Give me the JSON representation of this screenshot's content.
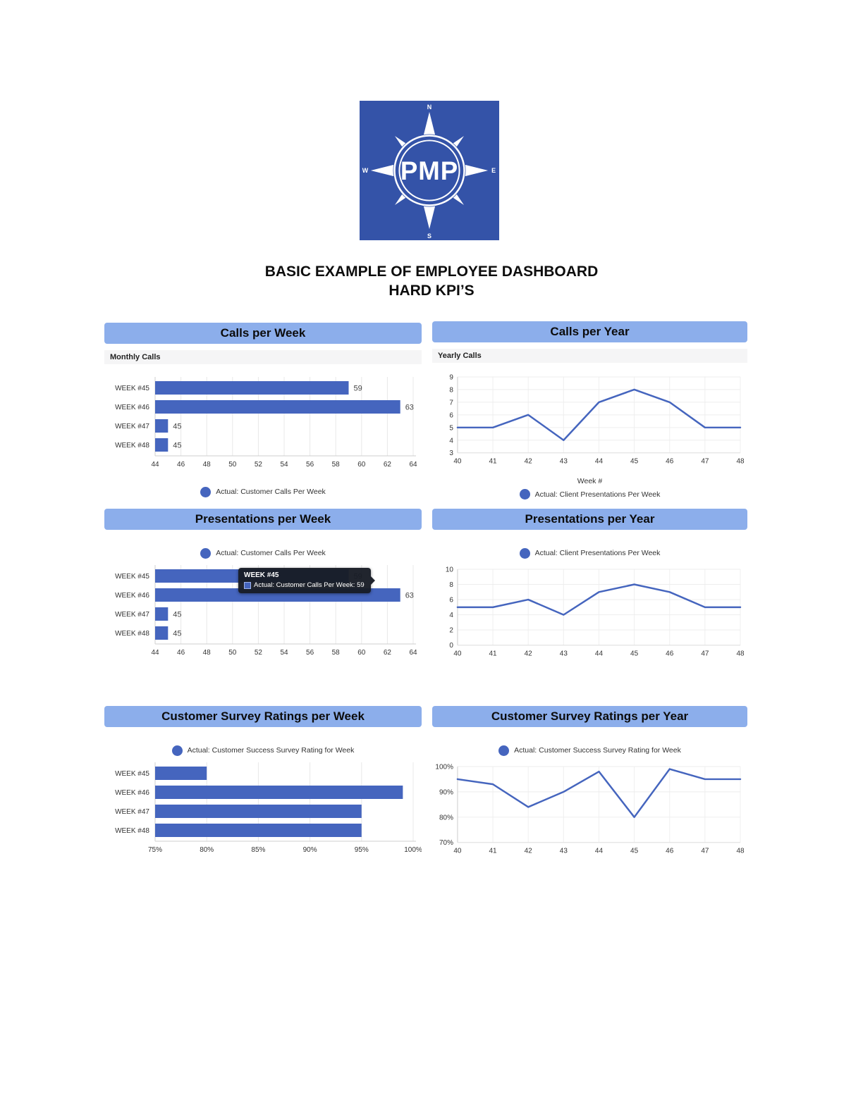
{
  "page": {
    "title_line1": "BASIC EXAMPLE OF EMPLOYEE DASHBOARD",
    "title_line2": "HARD KPI’S",
    "logo": {
      "text": "PMP",
      "n": "N",
      "e": "E",
      "s": "S",
      "w": "W"
    }
  },
  "colors": {
    "banner": "#8CAEEB",
    "series": "#4565BE",
    "logo_blue": "#3453A8",
    "tooltip_bg": "#181C25"
  },
  "chart_data": [
    {
      "id": "calls-per-week",
      "type": "bar",
      "title": "Calls per Week",
      "subtitle": "Monthly Calls",
      "legend": "Actual: Customer Calls Per Week",
      "legend_position": "bottom",
      "categories": [
        "WEEK #45",
        "WEEK #46",
        "WEEK #47",
        "WEEK #48"
      ],
      "values": [
        59,
        63,
        45,
        45
      ],
      "value_labels": true,
      "xlim": [
        44,
        64
      ],
      "xticks": [
        44,
        46,
        48,
        50,
        52,
        54,
        56,
        58,
        60,
        62,
        64
      ],
      "tick_suffix": ""
    },
    {
      "id": "calls-per-year",
      "type": "line",
      "title": "Calls per Year",
      "subtitle": "Yearly Calls",
      "legend": "Actual: Client Presentations Per Week",
      "legend_position": "bottom",
      "xlabel": "Week #",
      "x": [
        40,
        41,
        42,
        43,
        44,
        45,
        46,
        47,
        48
      ],
      "values": [
        5,
        5,
        6,
        4,
        7,
        8,
        7,
        5,
        5
      ],
      "ylim": [
        3,
        9
      ],
      "yticks": [
        3,
        4,
        5,
        6,
        7,
        8,
        9
      ],
      "tick_suffix": ""
    },
    {
      "id": "presentations-per-week",
      "type": "bar",
      "title": "Presentations per Week",
      "legend": "Actual: Customer Calls Per Week",
      "legend_position": "top",
      "categories": [
        "WEEK #45",
        "WEEK #46",
        "WEEK #47",
        "WEEK #48"
      ],
      "values": [
        59,
        63,
        45,
        45
      ],
      "value_labels": true,
      "xlim": [
        44,
        64
      ],
      "xticks": [
        44,
        46,
        48,
        50,
        52,
        54,
        56,
        58,
        60,
        62,
        64
      ],
      "tick_suffix": "",
      "tooltip": {
        "title": "WEEK #45",
        "text": "Actual: Customer Calls Per Week: 59"
      }
    },
    {
      "id": "presentations-per-year",
      "type": "line",
      "title": "Presentations per Year",
      "legend": "Actual: Client Presentations Per Week",
      "legend_position": "top",
      "x": [
        40,
        41,
        42,
        43,
        44,
        45,
        46,
        47,
        48
      ],
      "values": [
        5,
        5,
        6,
        4,
        7,
        8,
        7,
        5,
        5
      ],
      "ylim": [
        0,
        10
      ],
      "yticks": [
        0,
        2,
        4,
        6,
        8,
        10
      ],
      "tick_suffix": ""
    },
    {
      "id": "customer-survey-ratings-per-week",
      "type": "bar",
      "title": "Customer Survey Ratings per Week",
      "legend": "Actual: Customer Success Survey Rating for Week",
      "legend_position": "top",
      "categories": [
        "WEEK #45",
        "WEEK #46",
        "WEEK #47",
        "WEEK #48"
      ],
      "values": [
        80,
        99,
        95,
        95
      ],
      "value_labels": false,
      "xlim": [
        75,
        100
      ],
      "xticks": [
        75,
        80,
        85,
        90,
        95,
        100
      ],
      "tick_suffix": "%"
    },
    {
      "id": "customer-survey-ratings-per-year",
      "type": "line",
      "title": "Customer Survey Ratings per Year",
      "legend": "Actual: Customer Success Survey Rating for Week",
      "legend_position": "top",
      "x": [
        40,
        41,
        42,
        43,
        44,
        45,
        46,
        47,
        48
      ],
      "values": [
        95,
        93,
        84,
        90,
        98,
        80,
        99,
        95,
        95
      ],
      "ylim": [
        70,
        100
      ],
      "yticks": [
        70,
        80,
        90,
        100
      ],
      "tick_suffix": "%"
    }
  ]
}
